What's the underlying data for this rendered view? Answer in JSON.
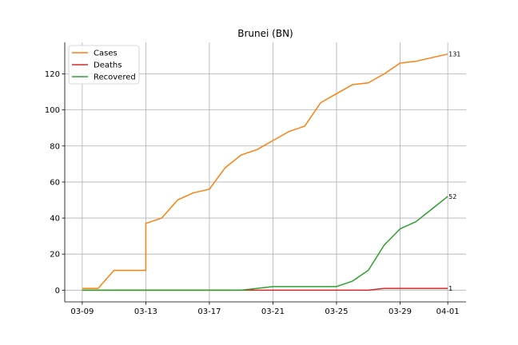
{
  "chart_data": {
    "type": "line",
    "title": "Brunei (BN)",
    "xlabel": "",
    "ylabel": "",
    "x": [
      "03-09",
      "03-10",
      "03-11",
      "03-12",
      "03-13",
      "03-13b",
      "03-14",
      "03-15",
      "03-16",
      "03-17",
      "03-18",
      "03-19",
      "03-20",
      "03-21",
      "03-22",
      "03-23",
      "03-24",
      "03-25",
      "03-26",
      "03-27",
      "03-28",
      "03-29",
      "03-30",
      "03-31",
      "04-01"
    ],
    "x_dates": [
      "2020-03-09",
      "2020-03-10",
      "2020-03-11",
      "2020-03-12",
      "2020-03-13",
      "2020-03-14",
      "2020-03-15",
      "2020-03-16",
      "2020-03-17",
      "2020-03-18",
      "2020-03-19",
      "2020-03-20",
      "2020-03-21",
      "2020-03-22",
      "2020-03-23",
      "2020-03-24",
      "2020-03-25",
      "2020-03-26",
      "2020-03-27",
      "2020-03-28",
      "2020-03-29",
      "2020-03-30",
      "2020-03-31",
      "2020-04-01"
    ],
    "xticks": [
      "03-09",
      "03-13",
      "03-17",
      "03-21",
      "03-25",
      "03-29",
      "04-01"
    ],
    "xtick_dates": [
      "2020-03-09",
      "2020-03-13",
      "2020-03-17",
      "2020-03-21",
      "2020-03-25",
      "2020-03-29",
      "2020-04-01"
    ],
    "yticks": [
      0,
      20,
      40,
      60,
      80,
      100,
      120
    ],
    "ylim": [
      -6.5,
      137.5
    ],
    "xlim": [
      "2020-03-07.9",
      "2020-04-02.15"
    ],
    "grid": true,
    "legend_position": "top-left",
    "series": [
      {
        "name": "Cases",
        "color": "#ff7f0e",
        "points": [
          [
            "2020-03-09",
            1
          ],
          [
            "2020-03-10",
            1
          ],
          [
            "2020-03-11",
            11
          ],
          [
            "2020-03-12",
            11
          ],
          [
            "2020-03-13",
            11
          ],
          [
            "2020-03-13",
            37
          ],
          [
            "2020-03-14",
            40
          ],
          [
            "2020-03-15",
            50
          ],
          [
            "2020-03-16",
            54
          ],
          [
            "2020-03-17",
            56
          ],
          [
            "2020-03-18",
            68
          ],
          [
            "2020-03-19",
            75
          ],
          [
            "2020-03-20",
            78
          ],
          [
            "2020-03-21",
            83
          ],
          [
            "2020-03-22",
            88
          ],
          [
            "2020-03-23",
            91
          ],
          [
            "2020-03-24",
            104
          ],
          [
            "2020-03-25",
            109
          ],
          [
            "2020-03-26",
            114
          ],
          [
            "2020-03-27",
            115
          ],
          [
            "2020-03-28",
            120
          ],
          [
            "2020-03-29",
            126
          ],
          [
            "2020-03-30",
            127
          ],
          [
            "2020-03-31",
            129
          ],
          [
            "2020-04-01",
            131
          ]
        ],
        "end_label": "131"
      },
      {
        "name": "Deaths",
        "color": "#d62728",
        "points": [
          [
            "2020-03-09",
            0
          ],
          [
            "2020-03-10",
            0
          ],
          [
            "2020-03-11",
            0
          ],
          [
            "2020-03-12",
            0
          ],
          [
            "2020-03-13",
            0
          ],
          [
            "2020-03-14",
            0
          ],
          [
            "2020-03-15",
            0
          ],
          [
            "2020-03-16",
            0
          ],
          [
            "2020-03-17",
            0
          ],
          [
            "2020-03-18",
            0
          ],
          [
            "2020-03-19",
            0
          ],
          [
            "2020-03-20",
            0
          ],
          [
            "2020-03-21",
            0
          ],
          [
            "2020-03-22",
            0
          ],
          [
            "2020-03-23",
            0
          ],
          [
            "2020-03-24",
            0
          ],
          [
            "2020-03-25",
            0
          ],
          [
            "2020-03-26",
            0
          ],
          [
            "2020-03-27",
            0
          ],
          [
            "2020-03-28",
            1
          ],
          [
            "2020-03-29",
            1
          ],
          [
            "2020-03-30",
            1
          ],
          [
            "2020-03-31",
            1
          ],
          [
            "2020-04-01",
            1
          ]
        ],
        "end_label": "1"
      },
      {
        "name": "Recovered",
        "color": "#2ca02c",
        "points": [
          [
            "2020-03-09",
            0
          ],
          [
            "2020-03-10",
            0
          ],
          [
            "2020-03-11",
            0
          ],
          [
            "2020-03-12",
            0
          ],
          [
            "2020-03-13",
            0
          ],
          [
            "2020-03-14",
            0
          ],
          [
            "2020-03-15",
            0
          ],
          [
            "2020-03-16",
            0
          ],
          [
            "2020-03-17",
            0
          ],
          [
            "2020-03-18",
            0
          ],
          [
            "2020-03-19",
            0
          ],
          [
            "2020-03-20",
            1
          ],
          [
            "2020-03-21",
            2
          ],
          [
            "2020-03-22",
            2
          ],
          [
            "2020-03-23",
            2
          ],
          [
            "2020-03-24",
            2
          ],
          [
            "2020-03-25",
            2
          ],
          [
            "2020-03-26",
            5
          ],
          [
            "2020-03-27",
            11
          ],
          [
            "2020-03-28",
            25
          ],
          [
            "2020-03-29",
            34
          ],
          [
            "2020-03-30",
            38
          ],
          [
            "2020-03-31",
            45
          ],
          [
            "2020-04-01",
            52
          ]
        ],
        "end_label": "52"
      }
    ]
  }
}
